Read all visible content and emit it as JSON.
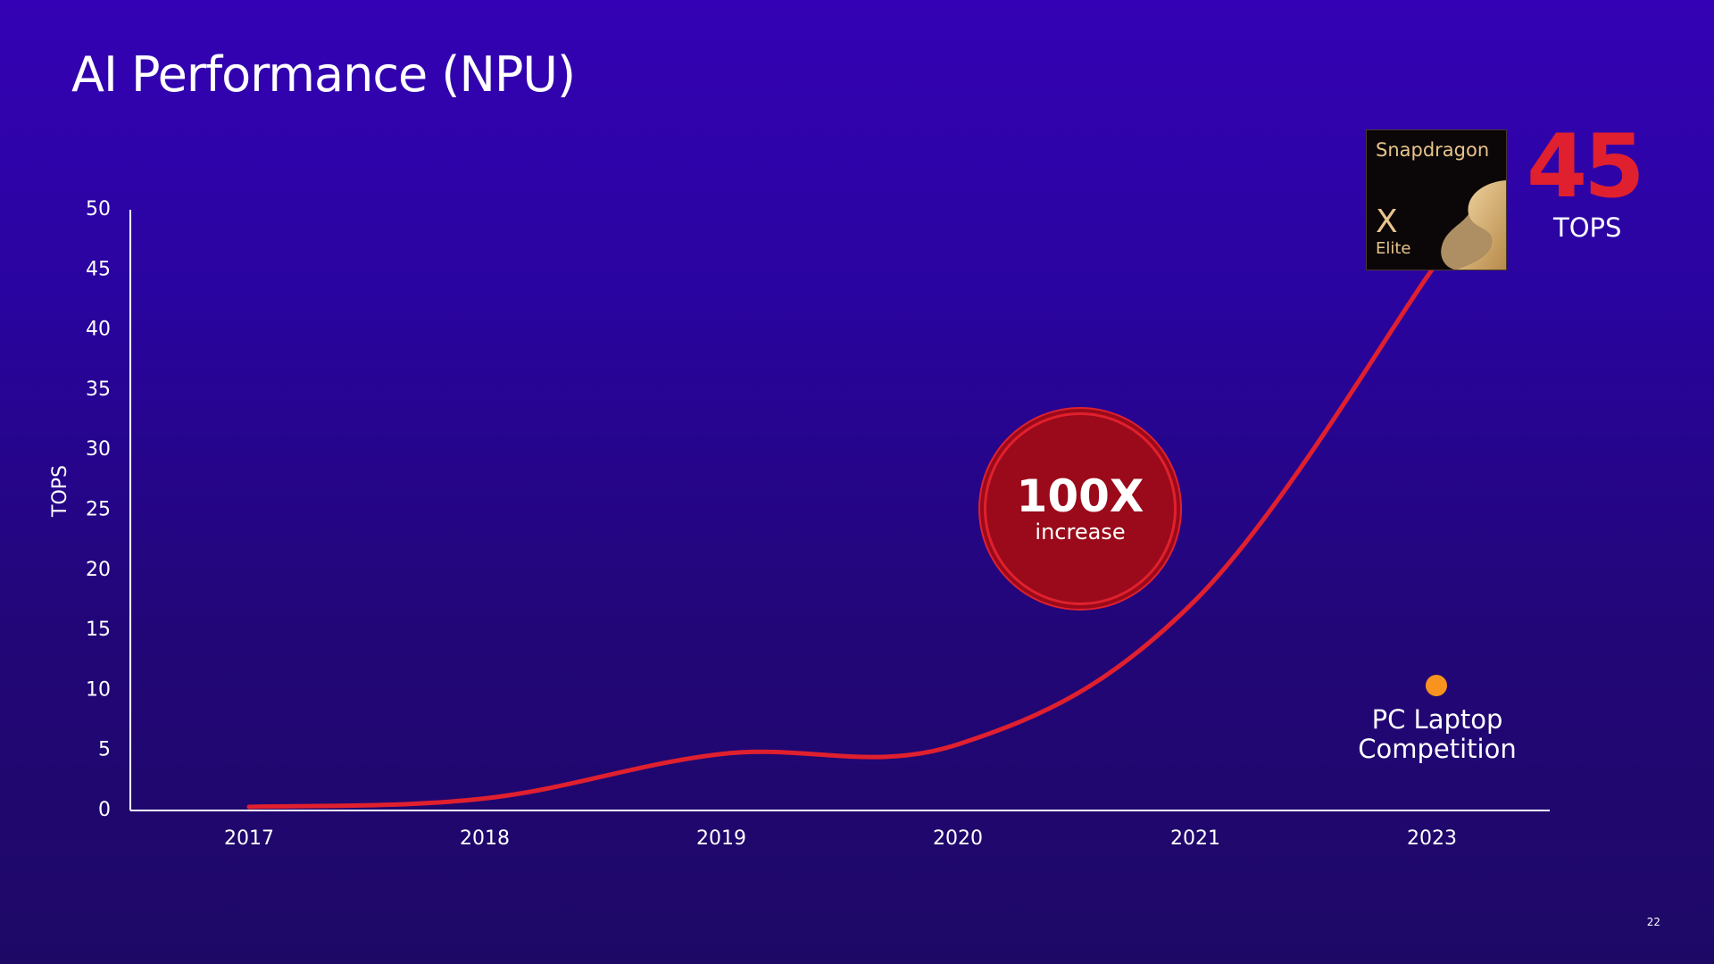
{
  "slide": {
    "title": "AI Performance (NPU)",
    "page_number": "22"
  },
  "highlight": {
    "brand": "Snapdragon",
    "model_x": "X",
    "model_name": "Elite",
    "value": "45",
    "unit": "TOPS"
  },
  "callout": {
    "big": "100X",
    "small": "increase"
  },
  "competition": {
    "label_line1": "PC Laptop",
    "label_line2": "Competition"
  },
  "colors": {
    "background_top": "#3402b4",
    "background_bottom": "#1e0866",
    "line": "#e0202e",
    "callout_fill": "#9a0a1a",
    "competition_dot": "#f7931e",
    "brand_gold": "#e8c48c"
  },
  "chart_data": {
    "type": "line",
    "ylabel": "TOPS",
    "xlabel": "",
    "categories": [
      "2017",
      "2018",
      "2019",
      "2020",
      "2021",
      "2023"
    ],
    "ylim": [
      0,
      50
    ],
    "yticks": [
      0,
      5,
      10,
      15,
      20,
      25,
      30,
      35,
      40,
      45,
      50
    ],
    "grid": false,
    "series": [
      {
        "values": [
          0.3,
          1,
          4.7,
          5.5,
          17.5,
          45
        ]
      }
    ],
    "points": [
      {
        "x": "2023",
        "y": 10.4,
        "label": "PC Laptop Competition"
      }
    ]
  }
}
